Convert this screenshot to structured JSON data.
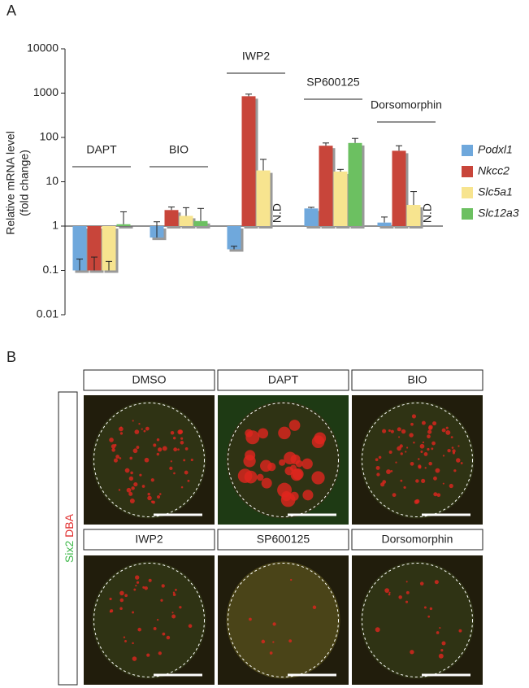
{
  "panel_labels": [
    "A",
    "B"
  ],
  "chart_data": {
    "type": "bar",
    "log_scale": true,
    "bar_origin": 1,
    "ylabel": [
      "Relative mRNA level",
      "(fold change)"
    ],
    "categories": [
      "DAPT",
      "BIO",
      "IWP2",
      "SP600125",
      "Dorsomorphin"
    ],
    "ylim": [
      0.01,
      10000
    ],
    "yticks": [
      0.01,
      0.1,
      1,
      10,
      100,
      1000,
      10000
    ],
    "series": [
      {
        "name": "Podxl1",
        "color": "#6fa8dc",
        "values": [
          0.1,
          0.55,
          0.3,
          2.5,
          1.2
        ],
        "errors": [
          0.08,
          0.7,
          0.05,
          0.15,
          0.4
        ]
      },
      {
        "name": "Nkcc2",
        "color": "#c8453a",
        "values": [
          0.1,
          2.3,
          850,
          65,
          50
        ],
        "errors": [
          0.1,
          0.4,
          100,
          10,
          15
        ]
      },
      {
        "name": "Slc5a1",
        "color": "#f7e48f",
        "values": [
          0.1,
          1.7,
          18,
          17,
          3
        ],
        "errors": [
          0.06,
          0.9,
          14,
          2,
          3
        ]
      },
      {
        "name": "Slc12a3",
        "color": "#6cc061",
        "values": [
          1.1,
          1.3,
          null,
          75,
          null
        ],
        "errors": [
          1,
          1.2,
          null,
          20,
          null
        ],
        "value_labels": [
          null,
          null,
          "N.D",
          null,
          "N.D"
        ]
      }
    ]
  },
  "images": {
    "labels": [
      "DMSO",
      "DAPT",
      "BIO",
      "IWP2",
      "SP600125",
      "Dorsomorphin"
    ],
    "stain": [
      "Six2",
      "DBA"
    ]
  }
}
